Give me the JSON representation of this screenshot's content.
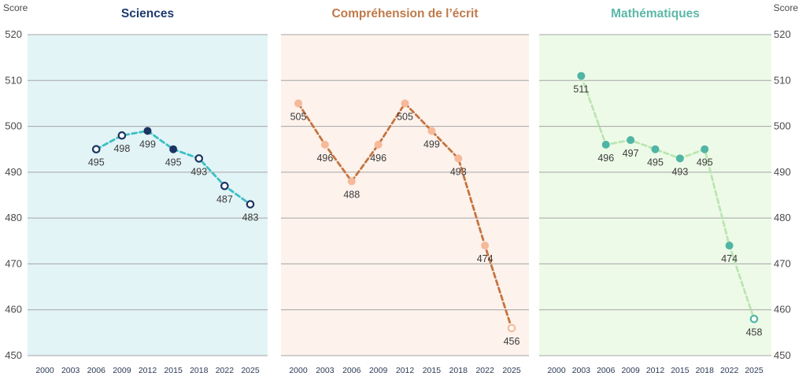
{
  "chart_data": {
    "type": "line",
    "ylabel": "Score",
    "ylim": [
      450,
      520
    ],
    "yticks": [
      450,
      460,
      470,
      480,
      490,
      500,
      510,
      520
    ],
    "x_categories": [
      "2000",
      "2003",
      "2006",
      "2009",
      "2012",
      "2015",
      "2018",
      "2022",
      "2025"
    ],
    "grid": true,
    "panels": [
      {
        "title": "Sciences",
        "title_color": "#1f3a6e",
        "background": "#e3f4f6",
        "line_color": "#3cbfc4",
        "marker_color": "#1b3563",
        "points": [
          {
            "x": "2006",
            "y": 495,
            "hollow": true
          },
          {
            "x": "2009",
            "y": 498,
            "hollow": true
          },
          {
            "x": "2012",
            "y": 499,
            "hollow": false
          },
          {
            "x": "2015",
            "y": 495,
            "hollow": false
          },
          {
            "x": "2018",
            "y": 493,
            "hollow": true
          },
          {
            "x": "2022",
            "y": 487,
            "hollow": true
          },
          {
            "x": "2025",
            "y": 483,
            "hollow": true
          }
        ]
      },
      {
        "title": "Compréhension de l’écrit",
        "title_color": "#c07a4a",
        "background": "#fdf2ec",
        "line_color": "#c5743f",
        "marker_color": "#f6b99a",
        "points": [
          {
            "x": "2000",
            "y": 505,
            "hollow": false
          },
          {
            "x": "2003",
            "y": 496,
            "hollow": false
          },
          {
            "x": "2006",
            "y": 488,
            "hollow": false
          },
          {
            "x": "2009",
            "y": 496,
            "hollow": false
          },
          {
            "x": "2012",
            "y": 505,
            "hollow": false
          },
          {
            "x": "2015",
            "y": 499,
            "hollow": false
          },
          {
            "x": "2018",
            "y": 493,
            "hollow": false
          },
          {
            "x": "2022",
            "y": 474,
            "hollow": false
          },
          {
            "x": "2025",
            "y": 456,
            "hollow": true
          }
        ]
      },
      {
        "title": "Mathématiques",
        "title_color": "#5cb8a8",
        "background": "#eefae8",
        "line_color": "#b9e6b2",
        "marker_color": "#4fb5a4",
        "points": [
          {
            "x": "2003",
            "y": 511,
            "hollow": false
          },
          {
            "x": "2006",
            "y": 496,
            "hollow": false
          },
          {
            "x": "2009",
            "y": 497,
            "hollow": false
          },
          {
            "x": "2012",
            "y": 495,
            "hollow": false
          },
          {
            "x": "2015",
            "y": 493,
            "hollow": false
          },
          {
            "x": "2018",
            "y": 495,
            "hollow": false
          },
          {
            "x": "2022",
            "y": 474,
            "hollow": false
          },
          {
            "x": "2025",
            "y": 458,
            "hollow": true
          }
        ]
      }
    ]
  }
}
